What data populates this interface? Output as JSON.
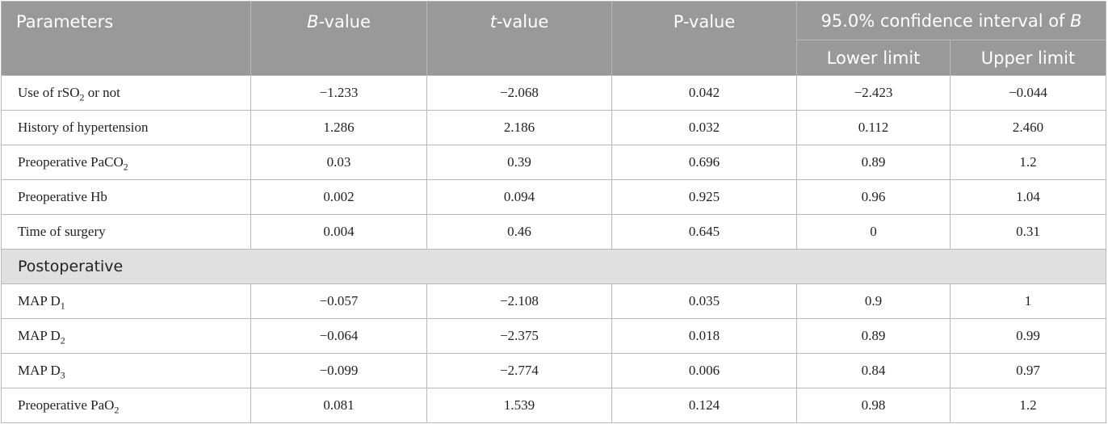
{
  "header": {
    "parameters": "Parameters",
    "b_italic": "B",
    "b_rest": "-value",
    "t_italic": "t",
    "t_rest": "-value",
    "p_value": "P-value",
    "ci_text": "95.0% confidence interval of ",
    "ci_italic": "B",
    "lower": "Lower limit",
    "upper": "Upper limit"
  },
  "rows_top": [
    {
      "pre": "Use of rSO",
      "sub": "2",
      "post": " or not",
      "b": "−1.233",
      "t": "−2.068",
      "p": "0.042",
      "lower": "−2.423",
      "upper": "−0.044"
    },
    {
      "pre": "History of hypertension",
      "sub": "",
      "post": "",
      "b": "1.286",
      "t": "2.186",
      "p": "0.032",
      "lower": "0.112",
      "upper": "2.460"
    },
    {
      "pre": "Preoperative PaCO",
      "sub": "2",
      "post": "",
      "b": "0.03",
      "t": "0.39",
      "p": "0.696",
      "lower": "0.89",
      "upper": "1.2"
    },
    {
      "pre": "Preoperative Hb",
      "sub": "",
      "post": "",
      "b": "0.002",
      "t": "0.094",
      "p": "0.925",
      "lower": "0.96",
      "upper": "1.04"
    },
    {
      "pre": "Time of surgery",
      "sub": "",
      "post": "",
      "b": "0.004",
      "t": "0.46",
      "p": "0.645",
      "lower": "0",
      "upper": "0.31"
    }
  ],
  "section_label": "Postoperative",
  "rows_bottom": [
    {
      "pre": "MAP D",
      "sub": "1",
      "post": "",
      "b": "−0.057",
      "t": "−2.108",
      "p": "0.035",
      "lower": "0.9",
      "upper": "1"
    },
    {
      "pre": "MAP D",
      "sub": "2",
      "post": "",
      "b": "−0.064",
      "t": "−2.375",
      "p": "0.018",
      "lower": "0.89",
      "upper": "0.99"
    },
    {
      "pre": "MAP D",
      "sub": "3",
      "post": "",
      "b": "−0.099",
      "t": "−2.774",
      "p": "0.006",
      "lower": "0.84",
      "upper": "0.97"
    },
    {
      "pre": "Preoperative PaO",
      "sub": "2",
      "post": "",
      "b": "0.081",
      "t": "1.539",
      "p": "0.124",
      "lower": "0.98",
      "upper": "1.2"
    }
  ]
}
